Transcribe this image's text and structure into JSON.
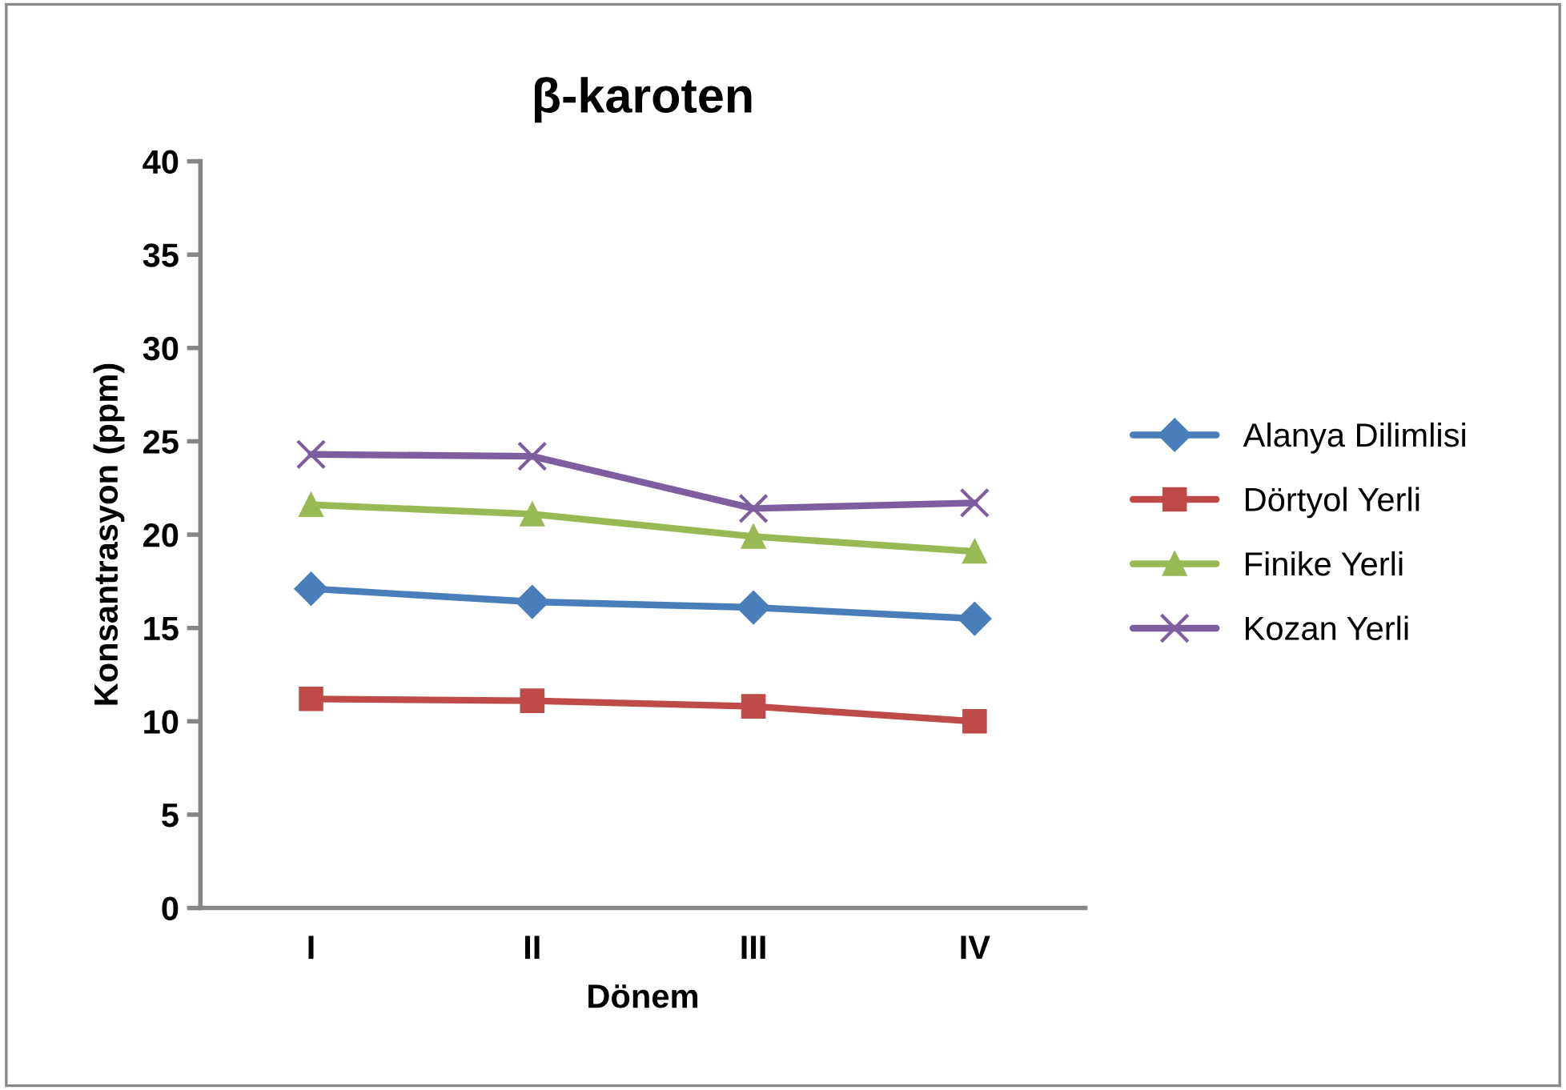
{
  "chart_data": {
    "type": "line",
    "title": "β-karoten",
    "xlabel": "Dönem",
    "ylabel": "Konsantrasyon (ppm)",
    "categories": [
      "I",
      "II",
      "III",
      "IV"
    ],
    "series": [
      {
        "name": "Alanya Dilimlisi",
        "color": "#4a7ebb",
        "marker": "diamond",
        "values": [
          17.1,
          16.4,
          16.1,
          15.5
        ]
      },
      {
        "name": "Dörtyol Yerli",
        "color": "#be4b48",
        "marker": "square",
        "values": [
          11.2,
          11.1,
          10.8,
          10.0
        ]
      },
      {
        "name": "Finike Yerli",
        "color": "#98b954",
        "marker": "triangle",
        "values": [
          21.6,
          21.1,
          19.9,
          19.1
        ]
      },
      {
        "name": "Kozan Yerli",
        "color": "#7d5fa0",
        "marker": "cross",
        "values": [
          24.3,
          24.2,
          21.4,
          21.7
        ]
      }
    ],
    "ylim": [
      0,
      40
    ],
    "yticks": [
      0,
      5,
      10,
      15,
      20,
      25,
      30,
      35,
      40
    ],
    "grid": false,
    "legend": "right"
  }
}
